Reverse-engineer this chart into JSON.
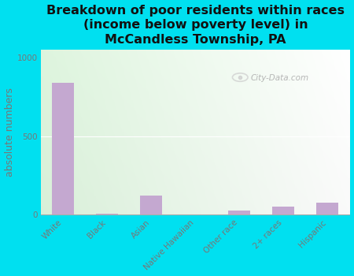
{
  "title": "Breakdown of poor residents within races\n(income below poverty level) in\nMcCandless Township, PA",
  "categories": [
    "White",
    "Black",
    "Asian",
    "Native Hawaiian",
    "Other race",
    "2+ races",
    "Hispanic"
  ],
  "values": [
    840,
    8,
    120,
    0,
    25,
    50,
    75
  ],
  "bar_color": "#c4a8d0",
  "ylabel": "absolute numbers",
  "ylim": [
    0,
    1050
  ],
  "yticks": [
    0,
    500,
    1000
  ],
  "background_color": "#00e0f0",
  "watermark": "City-Data.com",
  "title_fontsize": 11.5,
  "ylabel_fontsize": 9,
  "tick_fontsize": 7.5
}
